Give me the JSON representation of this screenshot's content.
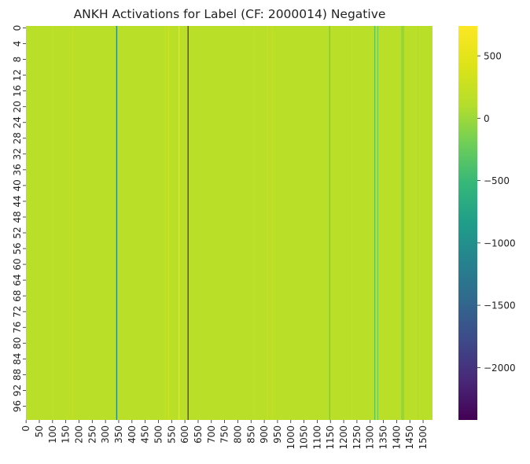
{
  "chart_data": {
    "type": "heatmap",
    "title": "ANKH Activations for Label (CF: 2000014) Negative",
    "xlabel": "",
    "ylabel": "",
    "colormap": "viridis",
    "n_rows": 100,
    "n_cols": 1536,
    "y_ticks": [
      "0",
      "4",
      "8",
      "12",
      "16",
      "20",
      "24",
      "28",
      "32",
      "36",
      "40",
      "44",
      "48",
      "52",
      "56",
      "60",
      "64",
      "68",
      "72",
      "76",
      "80",
      "84",
      "88",
      "92",
      "96"
    ],
    "x_ticks": [
      "0",
      "50",
      "100",
      "150",
      "200",
      "250",
      "300",
      "350",
      "400",
      "450",
      "500",
      "550",
      "600",
      "650",
      "700",
      "750",
      "800",
      "850",
      "900",
      "950",
      "1000",
      "1050",
      "1100",
      "1150",
      "1200",
      "1250",
      "1300",
      "1350",
      "1400",
      "1450",
      "1500"
    ],
    "colorbar": {
      "vmin": -2420,
      "vmax": 740,
      "ticks": [
        "500",
        "0",
        "−500",
        "−1000",
        "−1500",
        "−2000"
      ]
    },
    "background_value": 150,
    "column_stripes": [
      {
        "col": 341,
        "value": -1500
      },
      {
        "col": 342,
        "value": -1000
      },
      {
        "col": 537,
        "value": 360
      },
      {
        "col": 525,
        "value": 240
      },
      {
        "col": 577,
        "value": 700
      },
      {
        "col": 611,
        "value": -2420
      },
      {
        "col": 1146,
        "value": -350
      },
      {
        "col": 1316,
        "value": -400
      },
      {
        "col": 1317,
        "value": -300
      },
      {
        "col": 1328,
        "value": -250
      },
      {
        "col": 1419,
        "value": -250
      },
      {
        "col": 1425,
        "value": -200
      },
      {
        "col": 1480,
        "value": 50
      },
      {
        "col": 100,
        "value": 250
      },
      {
        "col": 175,
        "value": 250
      },
      {
        "col": 910,
        "value": 260
      },
      {
        "col": 930,
        "value": 240
      },
      {
        "col": 860,
        "value": 220
      },
      {
        "col": 1230,
        "value": 230
      }
    ]
  }
}
